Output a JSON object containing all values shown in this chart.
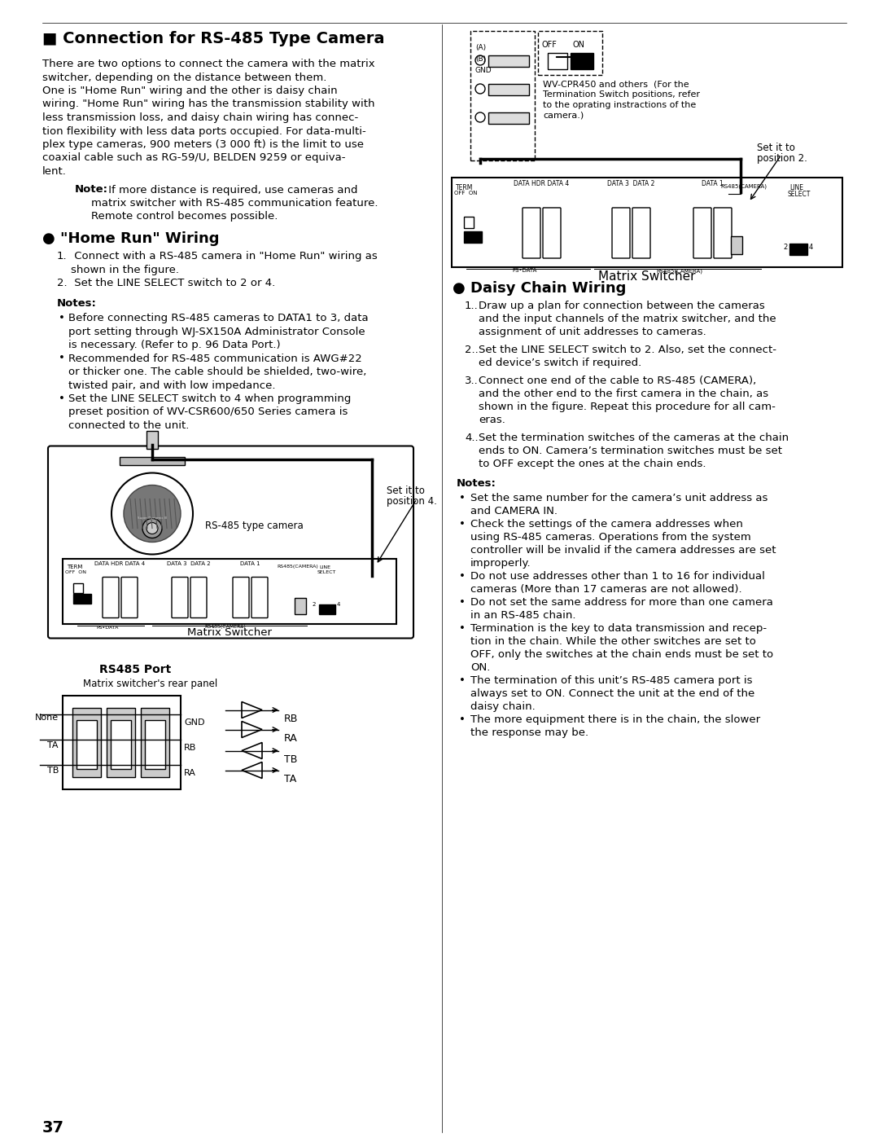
{
  "bg_color": "#ffffff",
  "page_number": "37",
  "title": "■ Connection for RS-485 Type Camera",
  "intro_lines": [
    "There are two options to connect the camera with the matrix",
    "switcher, depending on the distance between them.",
    "One is \"Home Run\" wiring and the other is daisy chain",
    "wiring. \"Home Run\" wiring has the transmission stability with",
    "less transmission loss, and daisy chain wiring has connec-",
    "tion flexibility with less data ports occupied. For data-multi-",
    "plex type cameras, 900 meters (3 000 ft) is the limit to use",
    "coaxial cable such as RG-59/U, BELDEN 9259 or equiva-",
    "lent."
  ],
  "note_bold": "Note:",
  "note_rest_lines": [
    " If more distance is required, use cameras and",
    "matrix switcher with RS-485 communication feature.",
    "Remote control becomes possible."
  ],
  "homerun_title": "● \"Home Run\" Wiring",
  "homerun_steps": [
    [
      "1.",
      " Connect with a RS-485 camera in \"Home Run\" wiring as"
    ],
    [
      "",
      "shown in the figure."
    ],
    [
      "2.",
      " Set the LINE SELECT switch to 2 or 4."
    ]
  ],
  "homerun_notes_title": "Notes:",
  "homerun_notes": [
    [
      "•",
      "Before connecting RS-485 cameras to DATA1 to 3, data"
    ],
    [
      "",
      "port setting through WJ-SX150A Administrator Console"
    ],
    [
      "",
      "is necessary. (Refer to p. 96 Data Port.)"
    ],
    [
      "•",
      "Recommended for RS-485 communication is AWG#22"
    ],
    [
      "",
      "or thicker one. The cable should be shielded, two-wire,"
    ],
    [
      "",
      "twisted pair, and with low impedance."
    ],
    [
      "•",
      "Set the LINE SELECT switch to 4 when programming"
    ],
    [
      "",
      "preset position of WV-CSR600/650 Series camera is"
    ],
    [
      "",
      "connected to the unit."
    ]
  ],
  "daisy_title": "● Daisy Chain Wiring",
  "daisy_steps": [
    [
      "1.",
      "Draw up a plan for connection between the cameras"
    ],
    [
      "",
      "and the input channels of the matrix switcher, and the"
    ],
    [
      "",
      "assignment of unit addresses to cameras."
    ],
    [
      "",
      ""
    ],
    [
      "2.",
      "Set the LINE SELECT switch to 2. Also, set the connect-"
    ],
    [
      "",
      "ed device’s switch if required."
    ],
    [
      "",
      ""
    ],
    [
      "3.",
      "Connect one end of the cable to RS-485 (CAMERA),"
    ],
    [
      "",
      "and the other end to the first camera in the chain, as"
    ],
    [
      "",
      "shown in the figure. Repeat this procedure for all cam-"
    ],
    [
      "",
      "eras."
    ],
    [
      "",
      ""
    ],
    [
      "4.",
      "Set the termination switches of the cameras at the chain"
    ],
    [
      "",
      "ends to ON. Camera’s termination switches must be set"
    ],
    [
      "",
      "to OFF except the ones at the chain ends."
    ]
  ],
  "daisy_notes_title": "Notes:",
  "daisy_notes": [
    [
      "•",
      "Set the same number for the camera’s unit address as"
    ],
    [
      "",
      "and CAMERA IN."
    ],
    [
      "•",
      "Check the settings of the camera addresses when"
    ],
    [
      "",
      "using RS-485 cameras. Operations from the system"
    ],
    [
      "",
      "controller will be invalid if the camera addresses are set"
    ],
    [
      "",
      "improperly."
    ],
    [
      "•",
      "Do not use addresses other than 1 to 16 for individual"
    ],
    [
      "",
      "cameras (More than 17 cameras are not allowed)."
    ],
    [
      "•",
      "Do not set the same address for more than one camera"
    ],
    [
      "",
      "in an RS-485 chain."
    ],
    [
      "•",
      "Termination is the key to data transmission and recep-"
    ],
    [
      "",
      "tion in the chain. While the other switches are set to"
    ],
    [
      "",
      "OFF, only the switches at the chain ends must be set to"
    ],
    [
      "",
      "ON."
    ],
    [
      "•",
      "The termination of this unit’s RS-485 camera port is"
    ],
    [
      "",
      "always set to ON. Connect the unit at the end of the"
    ],
    [
      "",
      "daisy chain."
    ],
    [
      "•",
      "The more equipment there is in the chain, the slower"
    ],
    [
      "",
      "the response may be."
    ]
  ],
  "rs485_port_title": "RS485 Port",
  "rs485_port_subtitle": "Matrix switcher's rear panel",
  "matrix_switcher_label": "Matrix Switcher",
  "wvcpr_lines": [
    "WV-CPR450 and others  (For the",
    "Termination Switch positions, refer",
    "to the oprating instractions of the",
    "camera.)"
  ],
  "set_pos2": [
    "Set it to",
    "position 2."
  ],
  "set_pos4": [
    "Set it to",
    "position 4."
  ],
  "rs485_cam_label": "RS-485 type camera"
}
